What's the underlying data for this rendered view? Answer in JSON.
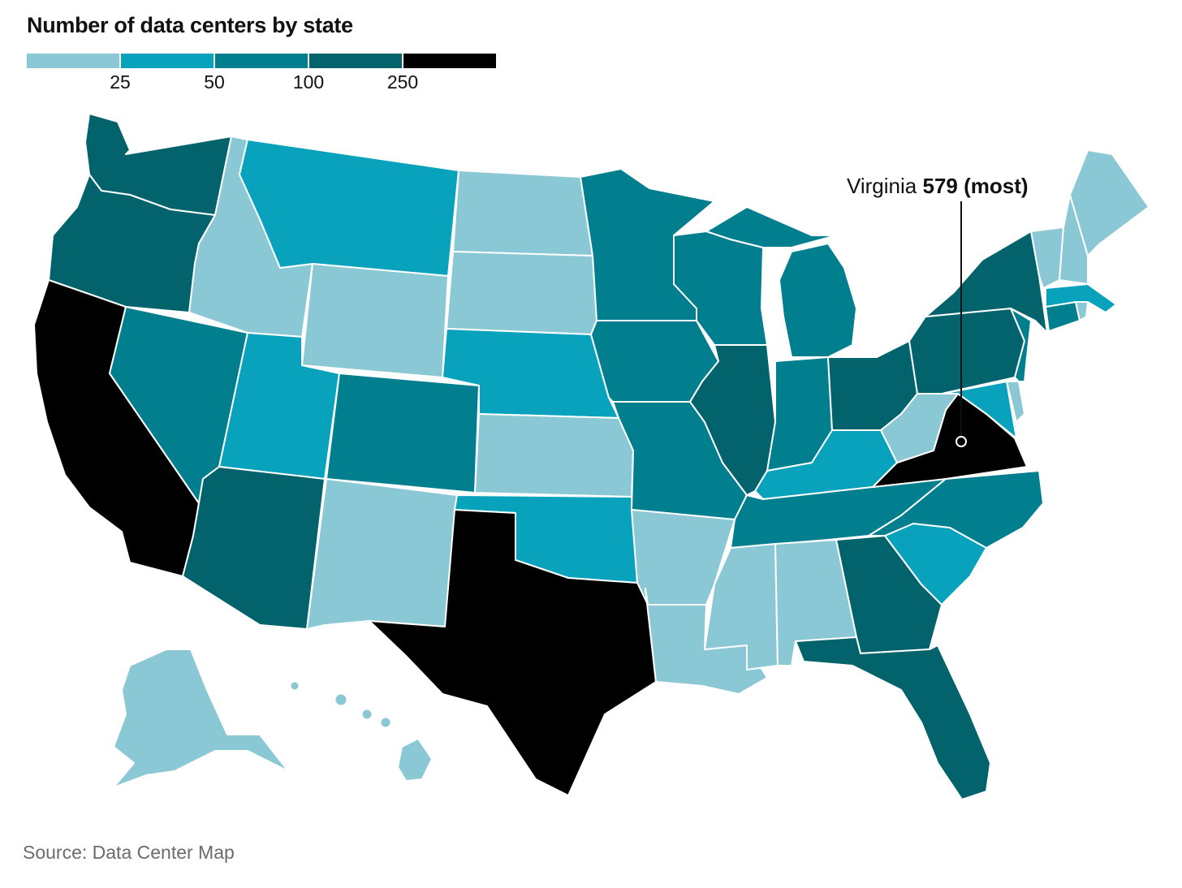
{
  "title": "Number of data centers by state",
  "legend": {
    "colors": [
      "#8bc8d6",
      "#08a2bd",
      "#017f8f",
      "#02636d",
      "#000000"
    ],
    "ticks": [
      "25",
      "50",
      "100",
      "250"
    ]
  },
  "annotation": {
    "state": "Virginia",
    "value": "579 (most)"
  },
  "source": "Source: Data Center Map",
  "states": {
    "WA": "#02636d",
    "OR": "#02636d",
    "CA": "#000000",
    "NV": "#017f8f",
    "ID": "#8bc8d6",
    "MT": "#08a2bd",
    "WY": "#8bc8d6",
    "UT": "#08a2bd",
    "AZ": "#02636d",
    "CO": "#017f8f",
    "NM": "#8bc8d6",
    "ND": "#8bc8d6",
    "SD": "#8bc8d6",
    "NE": "#08a2bd",
    "KS": "#8bc8d6",
    "OK": "#08a2bd",
    "TX": "#000000",
    "MN": "#017f8f",
    "IA": "#017f8f",
    "MO": "#017f8f",
    "AR": "#8bc8d6",
    "LA": "#8bc8d6",
    "WI": "#017f8f",
    "IL": "#02636d",
    "MI": "#017f8f",
    "IN": "#017f8f",
    "OH": "#02636d",
    "KY": "#08a2bd",
    "TN": "#017f8f",
    "MS": "#8bc8d6",
    "AL": "#8bc8d6",
    "GA": "#02636d",
    "FL": "#02636d",
    "SC": "#08a2bd",
    "NC": "#017f8f",
    "VA": "#000000",
    "WV": "#8bc8d6",
    "MD": "#08a2bd",
    "DE": "#8bc8d6",
    "PA": "#02636d",
    "NJ": "#017f8f",
    "NY": "#02636d",
    "CT": "#017f8f",
    "RI": "#8bc8d6",
    "MA": "#08a2bd",
    "VT": "#8bc8d6",
    "NH": "#8bc8d6",
    "ME": "#8bc8d6",
    "AK": "#8bc8d6",
    "HI": "#8bc8d6"
  }
}
